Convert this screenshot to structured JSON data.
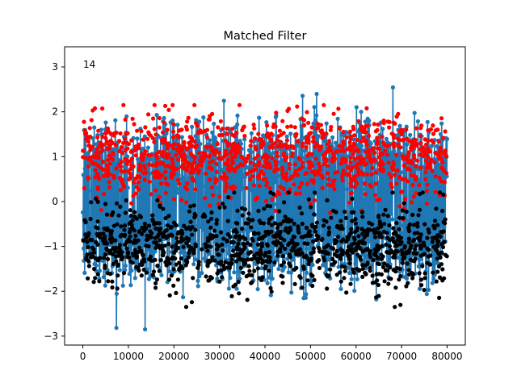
{
  "chart_data": {
    "type": "scatter",
    "title": "Matched Filter",
    "xlabel": "",
    "ylabel": "",
    "annotation": "14",
    "xlim": [
      -4000,
      84000
    ],
    "ylim": [
      -3.2,
      3.45
    ],
    "xticks": [
      0,
      10000,
      20000,
      30000,
      40000,
      50000,
      60000,
      70000,
      80000
    ],
    "xtick_labels": [
      "0",
      "10000",
      "20000",
      "30000",
      "40000",
      "50000",
      "60000",
      "70000",
      "80000"
    ],
    "yticks": [
      -3,
      -2,
      -1,
      0,
      1,
      2,
      3
    ],
    "ytick_labels": [
      "−3",
      "−2",
      "−1",
      "0",
      "1",
      "2",
      "3"
    ],
    "grid": false,
    "series": [
      {
        "color": "#1f77b4",
        "style": "line-with-markers",
        "x_range": [
          0,
          80000
        ],
        "levels": [
          1,
          -1
        ],
        "spread": 0.45,
        "min": -2.85,
        "max": 3.2
      },
      {
        "color": "#ff0000",
        "style": "markers",
        "x_range": [
          0,
          80000
        ],
        "center": 1.0,
        "spread": 0.45,
        "min": -0.4,
        "max": 2.15
      },
      {
        "color": "#000000",
        "style": "markers",
        "x_range": [
          0,
          80000
        ],
        "center": -1.0,
        "spread": 0.45,
        "min": -2.35,
        "max": 0.2
      }
    ]
  }
}
